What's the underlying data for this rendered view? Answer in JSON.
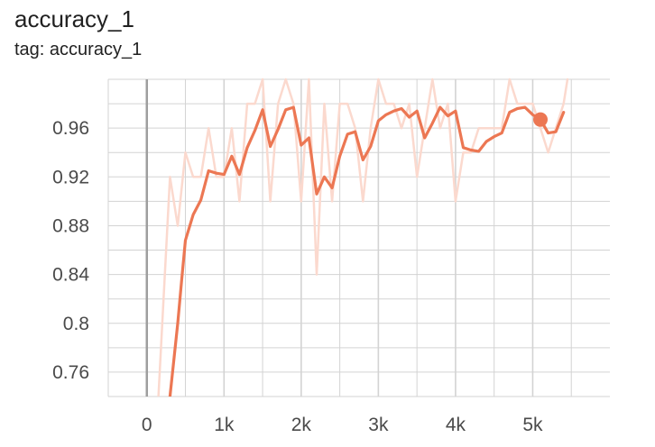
{
  "header": {
    "title": "accuracy_1",
    "subtitle": "tag: accuracy_1"
  },
  "colors": {
    "smoothed": "#ec7753",
    "raw": "#fbd9ce",
    "grid": "#d3d3d3",
    "zero_line": "#9e9e9e"
  },
  "chart_data": {
    "type": "line",
    "title": "accuracy_1",
    "subtitle": "tag: accuracy_1",
    "xlabel": "",
    "ylabel": "",
    "xlim": [
      -500,
      6000
    ],
    "ylim": [
      0.74,
      1.0
    ],
    "x_ticks": [
      0,
      1000,
      2000,
      3000,
      4000,
      5000
    ],
    "x_tick_labels": [
      "0",
      "1k",
      "2k",
      "3k",
      "4k",
      "5k"
    ],
    "y_ticks": [
      0.76,
      0.8,
      0.84,
      0.88,
      0.92,
      0.96
    ],
    "y_tick_labels": [
      "0.76",
      "0.8",
      "0.84",
      "0.88",
      "0.92",
      "0.96"
    ],
    "grid": true,
    "series": [
      {
        "role": "raw",
        "x": [
          150,
          300,
          400,
          500,
          600,
          700,
          800,
          900,
          1000,
          1100,
          1200,
          1300,
          1400,
          1500,
          1600,
          1700,
          1800,
          1900,
          2000,
          2100,
          2200,
          2300,
          2400,
          2500,
          2600,
          2700,
          2800,
          2900,
          3000,
          3100,
          3200,
          3300,
          3400,
          3500,
          3600,
          3700,
          3800,
          3900,
          4000,
          4100,
          4200,
          4300,
          4400,
          4500,
          4600,
          4700,
          4800,
          4900,
          5000,
          5100,
          5200,
          5300,
          5400,
          5450
        ],
        "values": [
          0.74,
          0.92,
          0.88,
          0.94,
          0.92,
          0.92,
          0.96,
          0.92,
          0.92,
          0.96,
          0.9,
          0.98,
          0.98,
          1.0,
          0.9,
          0.98,
          1.0,
          0.98,
          0.9,
          1.0,
          0.84,
          0.98,
          0.9,
          0.98,
          0.98,
          0.96,
          0.9,
          0.96,
          1.0,
          0.98,
          0.98,
          0.96,
          0.98,
          0.92,
          0.96,
          1.0,
          0.96,
          0.98,
          0.9,
          0.94,
          0.94,
          0.96,
          0.96,
          0.96,
          0.96,
          1.0,
          0.98,
          0.98,
          0.98,
          0.96,
          0.94,
          0.96,
          0.98,
          1.0
        ]
      },
      {
        "role": "smoothed",
        "x": [
          300,
          350,
          400,
          450,
          500,
          600,
          700,
          800,
          900,
          1000,
          1100,
          1200,
          1300,
          1400,
          1500,
          1600,
          1700,
          1800,
          1900,
          2000,
          2100,
          2200,
          2300,
          2400,
          2500,
          2600,
          2700,
          2800,
          2900,
          3000,
          3100,
          3200,
          3300,
          3400,
          3500,
          3600,
          3700,
          3800,
          3900,
          4000,
          4100,
          4200,
          4300,
          4400,
          4500,
          4600,
          4700,
          4800,
          4900,
          5000,
          5100,
          5200,
          5300,
          5400
        ],
        "values": [
          0.74,
          0.77,
          0.8,
          0.835,
          0.868,
          0.889,
          0.901,
          0.925,
          0.923,
          0.922,
          0.937,
          0.922,
          0.944,
          0.958,
          0.975,
          0.945,
          0.959,
          0.975,
          0.977,
          0.946,
          0.952,
          0.906,
          0.92,
          0.911,
          0.937,
          0.955,
          0.957,
          0.934,
          0.945,
          0.966,
          0.971,
          0.974,
          0.976,
          0.969,
          0.974,
          0.952,
          0.964,
          0.977,
          0.97,
          0.974,
          0.944,
          0.942,
          0.941,
          0.949,
          0.953,
          0.956,
          0.973,
          0.976,
          0.977,
          0.971,
          0.967,
          0.956,
          0.957,
          0.973
        ]
      }
    ],
    "highlight_point": {
      "x": 5100,
      "value": 0.967
    }
  }
}
